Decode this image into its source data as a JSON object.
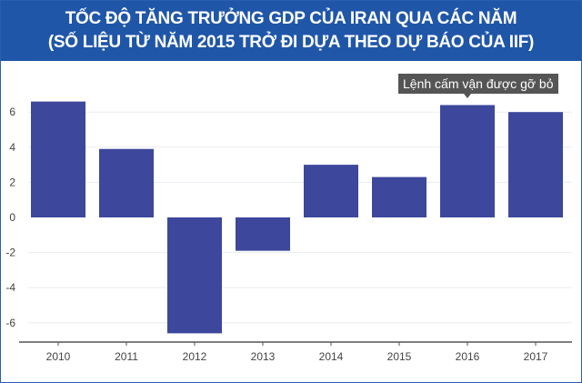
{
  "chart_data": {
    "type": "bar",
    "title": "TỐC ĐỘ TĂNG TRƯỞNG GDP CỦA IRAN QUA CÁC NĂM",
    "subtitle": "(SỐ LIỆU TỪ NĂM 2015 TRỞ ĐI DỰA THEO DỰ BÁO CỦA IIF)",
    "categories": [
      "2010",
      "2011",
      "2012",
      "2013",
      "2014",
      "2015",
      "2016",
      "2017"
    ],
    "values": [
      6.6,
      3.9,
      -6.6,
      -1.9,
      3.0,
      2.3,
      6.4,
      6.0
    ],
    "yticks": [
      "6",
      "4",
      "2",
      "0",
      "-2",
      "-4",
      "-6"
    ],
    "ylim": [
      -7.1,
      7
    ],
    "xlabel": "",
    "ylabel": "",
    "grid": true,
    "bar_color": "#3d479c",
    "annotation": {
      "text": "Lệnh cấm vận được gỡ bỏ",
      "category": "2016"
    }
  }
}
